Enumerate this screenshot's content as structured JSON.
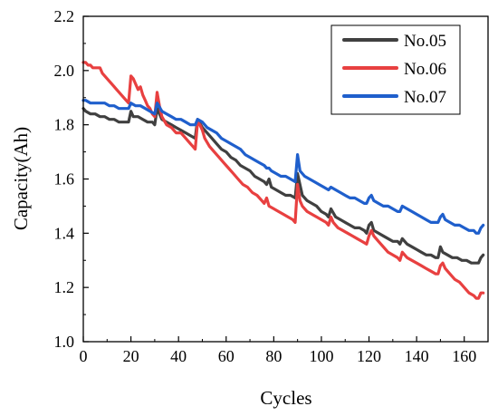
{
  "chart_data": {
    "type": "line",
    "xlabel": "Cycles",
    "ylabel": "Capacity(Ah)",
    "xlim": [
      0,
      170
    ],
    "ylim": [
      1.0,
      2.2
    ],
    "xticks": [
      0,
      20,
      40,
      60,
      80,
      100,
      120,
      140,
      160
    ],
    "yticks": [
      1.0,
      1.2,
      1.4,
      1.6,
      1.8,
      2.0,
      2.2
    ],
    "xtick_labels": [
      "0",
      "20",
      "40",
      "60",
      "80",
      "100",
      "120",
      "140",
      "160"
    ],
    "ytick_labels": [
      "1.0",
      "1.2",
      "1.4",
      "1.6",
      "1.8",
      "2.0",
      "2.2"
    ],
    "grid": false,
    "legend_position": "top-right",
    "series": [
      {
        "name": "No.05",
        "color": "#404040",
        "points": [
          [
            0,
            1.86
          ],
          [
            1,
            1.85
          ],
          [
            3,
            1.84
          ],
          [
            5,
            1.84
          ],
          [
            7,
            1.83
          ],
          [
            9,
            1.83
          ],
          [
            11,
            1.82
          ],
          [
            13,
            1.82
          ],
          [
            15,
            1.81
          ],
          [
            17,
            1.81
          ],
          [
            19,
            1.81
          ],
          [
            20,
            1.85
          ],
          [
            21,
            1.83
          ],
          [
            23,
            1.83
          ],
          [
            25,
            1.82
          ],
          [
            27,
            1.81
          ],
          [
            29,
            1.81
          ],
          [
            30,
            1.8
          ],
          [
            31,
            1.86
          ],
          [
            33,
            1.82
          ],
          [
            35,
            1.81
          ],
          [
            37,
            1.8
          ],
          [
            39,
            1.79
          ],
          [
            41,
            1.78
          ],
          [
            43,
            1.77
          ],
          [
            45,
            1.76
          ],
          [
            47,
            1.75
          ],
          [
            48,
            1.82
          ],
          [
            50,
            1.79
          ],
          [
            52,
            1.77
          ],
          [
            54,
            1.75
          ],
          [
            56,
            1.73
          ],
          [
            58,
            1.71
          ],
          [
            60,
            1.7
          ],
          [
            62,
            1.68
          ],
          [
            64,
            1.67
          ],
          [
            66,
            1.65
          ],
          [
            68,
            1.64
          ],
          [
            70,
            1.63
          ],
          [
            72,
            1.61
          ],
          [
            74,
            1.6
          ],
          [
            76,
            1.59
          ],
          [
            77,
            1.58
          ],
          [
            78,
            1.6
          ],
          [
            79,
            1.57
          ],
          [
            81,
            1.56
          ],
          [
            83,
            1.55
          ],
          [
            85,
            1.54
          ],
          [
            87,
            1.54
          ],
          [
            89,
            1.53
          ],
          [
            90,
            1.62
          ],
          [
            92,
            1.54
          ],
          [
            94,
            1.52
          ],
          [
            96,
            1.51
          ],
          [
            98,
            1.5
          ],
          [
            100,
            1.48
          ],
          [
            102,
            1.47
          ],
          [
            103,
            1.46
          ],
          [
            104,
            1.49
          ],
          [
            106,
            1.46
          ],
          [
            108,
            1.45
          ],
          [
            110,
            1.44
          ],
          [
            112,
            1.43
          ],
          [
            114,
            1.42
          ],
          [
            116,
            1.42
          ],
          [
            118,
            1.41
          ],
          [
            119,
            1.4
          ],
          [
            120,
            1.43
          ],
          [
            121,
            1.44
          ],
          [
            122,
            1.41
          ],
          [
            124,
            1.4
          ],
          [
            126,
            1.39
          ],
          [
            128,
            1.38
          ],
          [
            130,
            1.37
          ],
          [
            132,
            1.37
          ],
          [
            133,
            1.36
          ],
          [
            134,
            1.38
          ],
          [
            136,
            1.36
          ],
          [
            138,
            1.35
          ],
          [
            140,
            1.34
          ],
          [
            142,
            1.33
          ],
          [
            144,
            1.32
          ],
          [
            146,
            1.32
          ],
          [
            148,
            1.31
          ],
          [
            149,
            1.31
          ],
          [
            150,
            1.35
          ],
          [
            151,
            1.33
          ],
          [
            153,
            1.32
          ],
          [
            155,
            1.31
          ],
          [
            157,
            1.31
          ],
          [
            159,
            1.3
          ],
          [
            161,
            1.3
          ],
          [
            163,
            1.29
          ],
          [
            165,
            1.29
          ],
          [
            166,
            1.29
          ],
          [
            167,
            1.31
          ],
          [
            168,
            1.32
          ]
        ]
      },
      {
        "name": "No.06",
        "color": "#e84040",
        "points": [
          [
            0,
            2.03
          ],
          [
            1,
            2.03
          ],
          [
            2,
            2.02
          ],
          [
            3,
            2.02
          ],
          [
            4,
            2.01
          ],
          [
            5,
            2.01
          ],
          [
            6,
            2.01
          ],
          [
            7,
            2.01
          ],
          [
            8,
            1.99
          ],
          [
            10,
            1.97
          ],
          [
            12,
            1.95
          ],
          [
            14,
            1.93
          ],
          [
            16,
            1.91
          ],
          [
            18,
            1.89
          ],
          [
            19,
            1.88
          ],
          [
            20,
            1.98
          ],
          [
            21,
            1.97
          ],
          [
            22,
            1.95
          ],
          [
            23,
            1.93
          ],
          [
            24,
            1.94
          ],
          [
            25,
            1.91
          ],
          [
            26,
            1.89
          ],
          [
            27,
            1.87
          ],
          [
            28,
            1.86
          ],
          [
            29,
            1.84
          ],
          [
            30,
            1.83
          ],
          [
            31,
            1.92
          ],
          [
            32,
            1.87
          ],
          [
            33,
            1.83
          ],
          [
            35,
            1.8
          ],
          [
            37,
            1.79
          ],
          [
            39,
            1.77
          ],
          [
            41,
            1.77
          ],
          [
            43,
            1.75
          ],
          [
            45,
            1.73
          ],
          [
            46,
            1.72
          ],
          [
            47,
            1.71
          ],
          [
            48,
            1.81
          ],
          [
            49,
            1.8
          ],
          [
            50,
            1.78
          ],
          [
            51,
            1.75
          ],
          [
            53,
            1.72
          ],
          [
            55,
            1.7
          ],
          [
            57,
            1.68
          ],
          [
            59,
            1.66
          ],
          [
            61,
            1.64
          ],
          [
            63,
            1.62
          ],
          [
            65,
            1.6
          ],
          [
            67,
            1.58
          ],
          [
            69,
            1.57
          ],
          [
            71,
            1.55
          ],
          [
            73,
            1.54
          ],
          [
            75,
            1.52
          ],
          [
            76,
            1.51
          ],
          [
            77,
            1.53
          ],
          [
            78,
            1.5
          ],
          [
            80,
            1.49
          ],
          [
            82,
            1.48
          ],
          [
            84,
            1.47
          ],
          [
            86,
            1.46
          ],
          [
            88,
            1.45
          ],
          [
            89,
            1.44
          ],
          [
            90,
            1.58
          ],
          [
            91,
            1.52
          ],
          [
            92,
            1.5
          ],
          [
            94,
            1.48
          ],
          [
            96,
            1.47
          ],
          [
            98,
            1.46
          ],
          [
            100,
            1.45
          ],
          [
            102,
            1.44
          ],
          [
            103,
            1.43
          ],
          [
            104,
            1.46
          ],
          [
            105,
            1.44
          ],
          [
            107,
            1.42
          ],
          [
            109,
            1.41
          ],
          [
            111,
            1.4
          ],
          [
            113,
            1.39
          ],
          [
            115,
            1.38
          ],
          [
            117,
            1.37
          ],
          [
            119,
            1.36
          ],
          [
            120,
            1.39
          ],
          [
            121,
            1.41
          ],
          [
            122,
            1.39
          ],
          [
            124,
            1.37
          ],
          [
            126,
            1.35
          ],
          [
            128,
            1.33
          ],
          [
            130,
            1.32
          ],
          [
            132,
            1.31
          ],
          [
            133,
            1.3
          ],
          [
            134,
            1.33
          ],
          [
            136,
            1.31
          ],
          [
            138,
            1.3
          ],
          [
            140,
            1.29
          ],
          [
            142,
            1.28
          ],
          [
            144,
            1.27
          ],
          [
            146,
            1.26
          ],
          [
            148,
            1.25
          ],
          [
            149,
            1.25
          ],
          [
            150,
            1.28
          ],
          [
            151,
            1.29
          ],
          [
            152,
            1.27
          ],
          [
            154,
            1.25
          ],
          [
            156,
            1.23
          ],
          [
            158,
            1.22
          ],
          [
            160,
            1.2
          ],
          [
            162,
            1.18
          ],
          [
            164,
            1.17
          ],
          [
            165,
            1.16
          ],
          [
            166,
            1.16
          ],
          [
            167,
            1.18
          ],
          [
            168,
            1.18
          ]
        ]
      },
      {
        "name": "No.07",
        "color": "#1f5fcc",
        "points": [
          [
            0,
            1.89
          ],
          [
            1,
            1.89
          ],
          [
            3,
            1.88
          ],
          [
            5,
            1.88
          ],
          [
            7,
            1.88
          ],
          [
            9,
            1.88
          ],
          [
            11,
            1.87
          ],
          [
            13,
            1.87
          ],
          [
            15,
            1.86
          ],
          [
            17,
            1.86
          ],
          [
            19,
            1.86
          ],
          [
            20,
            1.88
          ],
          [
            22,
            1.87
          ],
          [
            24,
            1.87
          ],
          [
            26,
            1.86
          ],
          [
            28,
            1.85
          ],
          [
            30,
            1.84
          ],
          [
            31,
            1.88
          ],
          [
            33,
            1.85
          ],
          [
            35,
            1.84
          ],
          [
            37,
            1.83
          ],
          [
            39,
            1.82
          ],
          [
            41,
            1.82
          ],
          [
            43,
            1.81
          ],
          [
            45,
            1.8
          ],
          [
            47,
            1.8
          ],
          [
            48,
            1.82
          ],
          [
            50,
            1.81
          ],
          [
            52,
            1.79
          ],
          [
            54,
            1.78
          ],
          [
            56,
            1.77
          ],
          [
            58,
            1.75
          ],
          [
            60,
            1.74
          ],
          [
            62,
            1.73
          ],
          [
            64,
            1.72
          ],
          [
            66,
            1.71
          ],
          [
            68,
            1.69
          ],
          [
            70,
            1.68
          ],
          [
            72,
            1.67
          ],
          [
            74,
            1.66
          ],
          [
            76,
            1.65
          ],
          [
            77,
            1.64
          ],
          [
            78,
            1.64
          ],
          [
            79,
            1.63
          ],
          [
            81,
            1.62
          ],
          [
            83,
            1.61
          ],
          [
            85,
            1.61
          ],
          [
            87,
            1.6
          ],
          [
            89,
            1.59
          ],
          [
            90,
            1.69
          ],
          [
            91,
            1.63
          ],
          [
            93,
            1.61
          ],
          [
            95,
            1.6
          ],
          [
            97,
            1.59
          ],
          [
            99,
            1.58
          ],
          [
            101,
            1.57
          ],
          [
            103,
            1.56
          ],
          [
            104,
            1.57
          ],
          [
            106,
            1.56
          ],
          [
            108,
            1.55
          ],
          [
            110,
            1.54
          ],
          [
            112,
            1.53
          ],
          [
            114,
            1.53
          ],
          [
            116,
            1.52
          ],
          [
            118,
            1.51
          ],
          [
            119,
            1.51
          ],
          [
            120,
            1.53
          ],
          [
            121,
            1.54
          ],
          [
            122,
            1.52
          ],
          [
            124,
            1.51
          ],
          [
            126,
            1.5
          ],
          [
            128,
            1.5
          ],
          [
            130,
            1.49
          ],
          [
            132,
            1.48
          ],
          [
            133,
            1.48
          ],
          [
            134,
            1.5
          ],
          [
            136,
            1.49
          ],
          [
            138,
            1.48
          ],
          [
            140,
            1.47
          ],
          [
            142,
            1.46
          ],
          [
            144,
            1.45
          ],
          [
            146,
            1.44
          ],
          [
            148,
            1.44
          ],
          [
            149,
            1.44
          ],
          [
            150,
            1.46
          ],
          [
            151,
            1.47
          ],
          [
            152,
            1.45
          ],
          [
            154,
            1.44
          ],
          [
            156,
            1.43
          ],
          [
            158,
            1.43
          ],
          [
            160,
            1.42
          ],
          [
            162,
            1.41
          ],
          [
            164,
            1.41
          ],
          [
            165,
            1.4
          ],
          [
            166,
            1.4
          ],
          [
            167,
            1.42
          ],
          [
            168,
            1.43
          ]
        ]
      }
    ]
  }
}
